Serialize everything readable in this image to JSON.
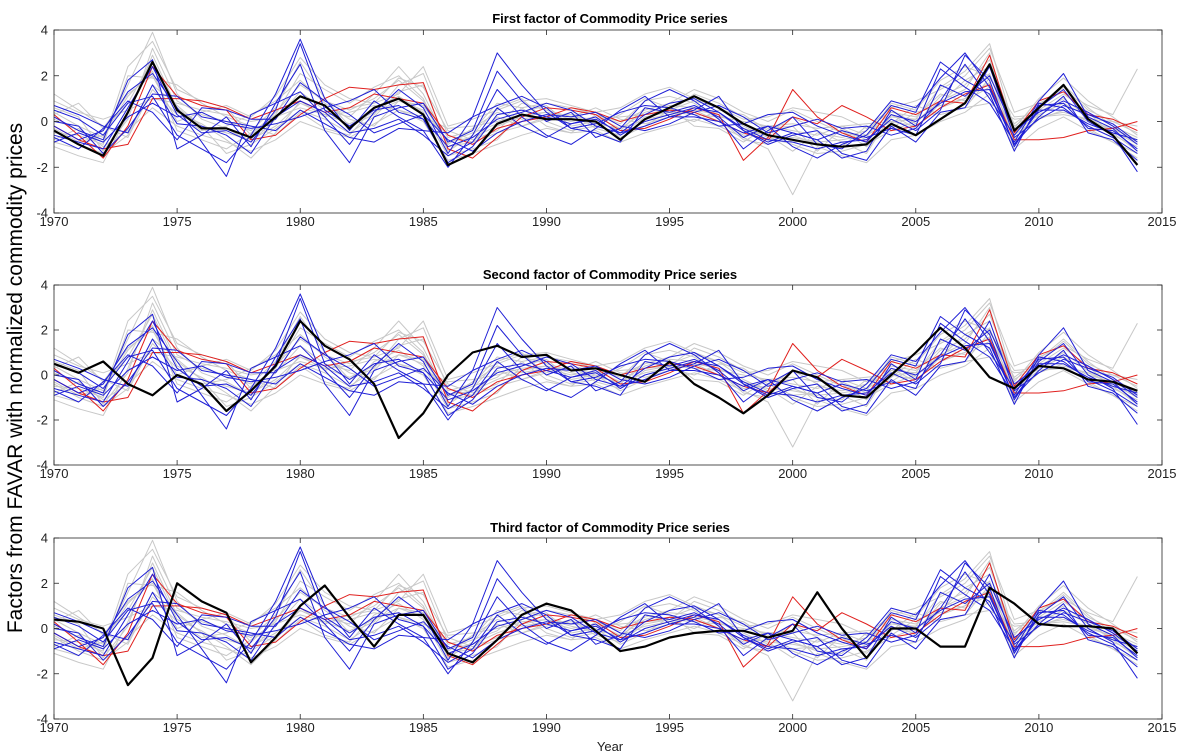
{
  "figure": {
    "ylabel": "Factors from FAVAR with normalized commodity prices",
    "xlabel": "Year"
  },
  "chart_data": [
    {
      "type": "line",
      "title": "First factor of Commodity Price series",
      "xlim": [
        1970,
        2015
      ],
      "ylim": [
        -4,
        4
      ],
      "xticks": [
        1970,
        1975,
        1980,
        1985,
        1990,
        1995,
        2000,
        2005,
        2010,
        2015
      ],
      "yticks": [
        -4,
        -2,
        0,
        2,
        4
      ],
      "x_start": 1970,
      "x_end": 2014,
      "colors": {
        "factor": "#000000",
        "blue": "#1f1fd6",
        "red": "#e0201e",
        "gray": "#c8c8c8"
      },
      "factor": [
        -0.4,
        -1.0,
        -1.5,
        0.4,
        2.6,
        0.5,
        -0.3,
        -0.3,
        -0.7,
        0.2,
        1.1,
        0.7,
        -0.3,
        0.6,
        1.0,
        0.3,
        -1.9,
        -1.4,
        -0.1,
        0.3,
        0.1,
        0.1,
        0.0,
        -0.8,
        0.1,
        0.6,
        1.1,
        0.6,
        -0.1,
        -0.6,
        -0.8,
        -1.0,
        -1.1,
        -1.0,
        -0.1,
        -0.6,
        0.1,
        0.8,
        2.5,
        -0.4,
        0.6,
        1.6,
        0.1,
        -0.6,
        -1.9
      ]
    },
    {
      "type": "line",
      "title": "Second factor of Commodity Price series",
      "xlim": [
        1970,
        2015
      ],
      "ylim": [
        -4,
        4
      ],
      "xticks": [
        1970,
        1975,
        1980,
        1985,
        1990,
        1995,
        2000,
        2005,
        2010,
        2015
      ],
      "yticks": [
        -4,
        -2,
        0,
        2,
        4
      ],
      "x_start": 1970,
      "x_end": 2014,
      "colors": {
        "factor": "#000000",
        "blue": "#1f1fd6",
        "red": "#e0201e",
        "gray": "#c8c8c8"
      },
      "factor": [
        0.5,
        0.1,
        0.6,
        -0.4,
        -0.9,
        0.0,
        -0.4,
        -1.6,
        -0.7,
        0.4,
        2.4,
        1.3,
        0.7,
        -0.4,
        -2.8,
        -1.7,
        0.0,
        1.0,
        1.3,
        0.8,
        0.9,
        0.2,
        0.3,
        0.0,
        -0.3,
        0.6,
        -0.4,
        -1.0,
        -1.7,
        -0.9,
        0.2,
        -0.1,
        -0.9,
        -1.0,
        0.0,
        1.0,
        2.1,
        1.2,
        -0.1,
        -0.6,
        0.4,
        0.3,
        -0.2,
        -0.3,
        -0.7
      ]
    },
    {
      "type": "line",
      "title": "Third factor of Commodity Price series",
      "xlim": [
        1970,
        2015
      ],
      "ylim": [
        -4,
        4
      ],
      "xticks": [
        1970,
        1975,
        1980,
        1985,
        1990,
        1995,
        2000,
        2005,
        2010,
        2015
      ],
      "yticks": [
        -4,
        -2,
        0,
        2,
        4
      ],
      "x_start": 1970,
      "x_end": 2014,
      "colors": {
        "factor": "#000000",
        "blue": "#1f1fd6",
        "red": "#e0201e",
        "gray": "#c8c8c8"
      },
      "factor": [
        0.4,
        0.3,
        0.0,
        -2.5,
        -1.3,
        2.0,
        1.2,
        0.7,
        -1.5,
        -0.4,
        1.0,
        1.9,
        0.5,
        -0.8,
        0.6,
        0.6,
        -1.1,
        -1.5,
        -0.5,
        0.6,
        1.1,
        0.8,
        -0.1,
        -1.0,
        -0.8,
        -0.4,
        -0.2,
        -0.1,
        -0.1,
        -0.4,
        -0.1,
        1.6,
        0.0,
        -1.3,
        0.0,
        0.0,
        -0.8,
        -0.8,
        1.8,
        1.1,
        0.2,
        0.1,
        0.1,
        0.0,
        -1.1
      ]
    }
  ],
  "commodity_series": {
    "blue": [
      [
        -0.6,
        -0.9,
        -1.2,
        0.6,
        2.4,
        0.3,
        -0.5,
        -0.4,
        -0.9,
        0.5,
        3.4,
        0.5,
        -0.2,
        0.5,
        0.7,
        0.1,
        -1.8,
        -1.1,
        0.3,
        0.5,
        0.2,
        -0.1,
        0.1,
        -0.5,
        0.3,
        0.8,
        1.0,
        0.4,
        -0.3,
        -0.8,
        -0.9,
        -1.2,
        -0.9,
        -0.8,
        0.1,
        -0.4,
        0.5,
        2.9,
        1.8,
        -1.1,
        0.6,
        1.4,
        0.0,
        -0.6,
        -2.2
      ],
      [
        0.2,
        -0.4,
        -0.8,
        1.8,
        2.7,
        -1.2,
        -0.6,
        0.2,
        -1.1,
        0.8,
        1.3,
        0.2,
        -1.0,
        0.4,
        1.4,
        0.6,
        -1.4,
        0.2,
        3.0,
        1.6,
        0.4,
        -0.3,
        -0.5,
        -0.9,
        0.6,
        0.4,
        0.7,
        0.2,
        -0.7,
        -0.2,
        -1.1,
        -1.6,
        -1.0,
        -0.6,
        0.7,
        0.4,
        2.6,
        1.8,
        1.2,
        -1.3,
        0.8,
        0.6,
        -0.2,
        -0.7,
        -1.4
      ],
      [
        0.5,
        0.1,
        -0.6,
        0.8,
        1.1,
        -0.6,
        -1.2,
        -1.8,
        -0.6,
        1.2,
        3.6,
        1.0,
        -0.4,
        0.9,
        0.2,
        -0.4,
        -2.0,
        -0.6,
        1.4,
        0.2,
        -0.6,
        -1.0,
        -0.3,
        0.5,
        1.1,
        0.2,
        0.5,
        1.1,
        -0.4,
        -0.9,
        -0.5,
        -0.8,
        -1.6,
        -1.3,
        0.5,
        -0.2,
        2.3,
        1.5,
        0.8,
        -0.9,
        0.9,
        2.1,
        0.2,
        -0.3,
        -1.3
      ],
      [
        -0.2,
        -0.8,
        -0.4,
        1.3,
        2.1,
        0.6,
        -0.9,
        -2.4,
        0.3,
        0.8,
        2.5,
        -0.4,
        -1.8,
        0.2,
        0.6,
        0.8,
        -0.9,
        -0.4,
        2.2,
        0.9,
        0.0,
        0.4,
        -0.7,
        -0.3,
        0.9,
        1.4,
        0.9,
        0.1,
        -1.2,
        -0.4,
        0.2,
        -1.0,
        -1.2,
        -0.4,
        0.9,
        0.6,
        1.9,
        3.0,
        1.5,
        -1.0,
        0.2,
        1.1,
        -0.5,
        -0.8,
        -1.7
      ],
      [
        0.7,
        0.3,
        -0.2,
        -0.5,
        1.6,
        -0.1,
        -0.2,
        -0.6,
        -1.4,
        0.2,
        0.9,
        0.4,
        -0.5,
        -0.3,
        0.1,
        -0.6,
        -1.5,
        -0.9,
        0.6,
        -0.2,
        -0.7,
        -0.1,
        0.2,
        -0.6,
        0.0,
        0.3,
        0.6,
        0.4,
        -0.4,
        -1.0,
        -0.6,
        -0.4,
        -1.4,
        -1.7,
        -0.2,
        -0.9,
        0.4,
        0.6,
        2.4,
        -0.7,
        0.1,
        0.7,
        0.3,
        -0.1,
        -0.9
      ],
      [
        -0.9,
        -0.5,
        -0.9,
        0.2,
        0.8,
        0.2,
        0.4,
        -0.1,
        -0.3,
        -0.1,
        0.2,
        0.6,
        0.9,
        1.4,
        0.4,
        0.1,
        -1.1,
        -0.7,
        0.1,
        0.4,
        0.8,
        0.5,
        -0.2,
        -0.5,
        -0.2,
        0.2,
        0.2,
        0.0,
        -0.5,
        -0.2,
        -0.5,
        -0.8,
        -0.4,
        -0.7,
        -0.3,
        -0.6,
        1.6,
        1.1,
        2.0,
        -0.4,
        0.4,
        0.9,
        0.4,
        -0.2,
        -1.0
      ],
      [
        0.0,
        -0.2,
        -1.4,
        -0.3,
        1.2,
        1.1,
        0.2,
        0.0,
        -0.2,
        -0.4,
        0.5,
        -0.1,
        -0.7,
        -0.9,
        -0.3,
        -0.4,
        -0.5,
        0.2,
        0.7,
        1.1,
        0.6,
        -0.3,
        -0.1,
        0.4,
        0.7,
        0.6,
        0.3,
        -0.2,
        -0.1,
        0.3,
        0.4,
        -0.2,
        -0.6,
        -0.9,
        0.3,
        0.0,
        0.8,
        1.3,
        1.4,
        -1.0,
        0.5,
        0.5,
        -0.1,
        -0.5,
        -0.8
      ],
      [
        -0.7,
        -1.2,
        -0.3,
        0.9,
        0.4,
        -0.8,
        0.6,
        0.5,
        0.1,
        0.1,
        1.7,
        0.9,
        0.3,
        -0.5,
        -0.1,
        0.3,
        -0.8,
        -1.3,
        -0.5,
        0.0,
        0.3,
        0.2,
        0.4,
        -0.2,
        -0.4,
        -0.1,
        0.4,
        0.7,
        0.2,
        -0.5,
        -0.2,
        0.1,
        -0.3,
        -0.2,
        -0.6,
        -0.3,
        0.9,
        2.5,
        1.0,
        -0.6,
        0.7,
        0.8,
        -0.3,
        -0.4,
        -1.2
      ]
    ],
    "red": [
      [
        0.3,
        -0.6,
        -1.6,
        -0.2,
        2.4,
        1.1,
        0.7,
        0.5,
        -0.8,
        -0.6,
        0.3,
        1.0,
        1.5,
        1.4,
        1.6,
        1.7,
        -1.2,
        -1.6,
        -0.7,
        0.2,
        0.6,
        0.5,
        0.3,
        -0.4,
        -0.3,
        0.1,
        0.6,
        0.3,
        -1.7,
        -0.7,
        1.4,
        0.2,
        -0.5,
        -0.9,
        0.6,
        0.3,
        0.9,
        0.8,
        2.9,
        -0.5,
        0.9,
        1.3,
        0.3,
        0.1,
        -0.4
      ],
      [
        -0.2,
        -0.8,
        -1.2,
        -1.0,
        1.0,
        1.0,
        0.9,
        0.6,
        0.1,
        0.5,
        0.9,
        0.4,
        0.6,
        1.2,
        1.0,
        0.8,
        -0.6,
        -1.0,
        -0.3,
        0.0,
        0.2,
        0.6,
        0.4,
        0.0,
        0.3,
        0.5,
        0.4,
        0.0,
        -0.5,
        -0.8,
        0.2,
        -0.1,
        0.7,
        0.2,
        -0.4,
        -0.2,
        0.6,
        1.2,
        1.6,
        -0.8,
        -0.8,
        -0.7,
        -0.4,
        -0.3,
        0.0
      ]
    ],
    "gray": [
      [
        0.4,
        -0.2,
        -0.7,
        1.6,
        3.9,
        1.2,
        0.1,
        -0.3,
        -0.9,
        0.1,
        1.3,
        0.5,
        0.2,
        1.2,
        2.4,
        1.2,
        -1.0,
        -0.3,
        0.4,
        0.1,
        0.3,
        0.0,
        0.2,
        -0.3,
        0.4,
        0.7,
        0.6,
        0.4,
        -0.4,
        -0.6,
        -1.3,
        -0.5,
        -0.7,
        -0.4,
        0.5,
        -0.1,
        1.1,
        1.6,
        2.7,
        -0.2,
        0.5,
        1.2,
        0.4,
        -0.6,
        -1.1
      ],
      [
        -0.9,
        -1.2,
        -0.4,
        0.8,
        2.7,
        0.4,
        -0.1,
        -0.8,
        -1.6,
        -0.5,
        0.9,
        0.2,
        0.6,
        0.8,
        1.9,
        1.5,
        -0.4,
        -0.8,
        -0.4,
        0.6,
        0.8,
        0.6,
        0.3,
        -0.1,
        0.9,
        1.1,
        0.8,
        0.1,
        -0.8,
        -1.0,
        -0.6,
        -1.0,
        -1.1,
        -0.2,
        -0.3,
        0.4,
        0.7,
        1.0,
        2.1,
        -0.9,
        0.1,
        0.5,
        0.0,
        -0.3,
        -0.8
      ],
      [
        0.6,
        0.2,
        -1.3,
        0.1,
        3.2,
        0.9,
        0.3,
        0.0,
        -0.4,
        0.6,
        2.6,
        1.0,
        -0.2,
        0.3,
        1.6,
        2.1,
        -0.6,
        -0.9,
        0.2,
        -0.2,
        0.1,
        0.4,
        -0.3,
        -0.6,
        0.2,
        0.4,
        1.2,
        0.8,
        0.2,
        -0.3,
        -0.2,
        -1.3,
        -0.3,
        -0.8,
        0.2,
        0.1,
        1.5,
        2.2,
        3.4,
        -0.3,
        1.0,
        1.9,
        0.9,
        0.2,
        -0.6
      ],
      [
        -0.5,
        -0.6,
        -1.0,
        2.0,
        1.9,
        1.6,
        0.8,
        0.2,
        -0.2,
        -0.6,
        0.4,
        -0.3,
        -0.6,
        0.6,
        1.1,
        0.4,
        -1.5,
        -1.2,
        -0.8,
        0.4,
        0.7,
        -0.2,
        0.0,
        -0.4,
        0.6,
        0.3,
        0.0,
        0.5,
        0.3,
        -0.4,
        -0.9,
        -0.8,
        -0.4,
        -1.1,
        -0.1,
        0.7,
        0.3,
        0.6,
        1.9,
        0.2,
        0.3,
        0.8,
        -0.3,
        -0.9,
        -1.4
      ],
      [
        1.2,
        0.5,
        -0.2,
        -0.7,
        1.4,
        0.3,
        -0.4,
        -0.2,
        0.3,
        0.9,
        1.8,
        0.8,
        0.1,
        -0.2,
        0.9,
        0.7,
        -0.9,
        -0.5,
        -0.1,
        0.8,
        0.5,
        0.2,
        0.6,
        0.1,
        -0.1,
        0.2,
        0.5,
        0.0,
        -0.6,
        -0.5,
        0.2,
        -0.4,
        -0.9,
        -1.4,
        0.3,
        -0.3,
        0.8,
        1.8,
        2.4,
        -0.5,
        0.6,
        1.5,
        0.5,
        0.0,
        -0.5
      ],
      [
        -0.3,
        -0.9,
        -0.6,
        1.1,
        2.2,
        -0.4,
        -0.8,
        -1.2,
        -0.5,
        0.3,
        2.1,
        1.4,
        0.8,
        1.5,
        2.0,
        1.0,
        -1.3,
        -0.6,
        0.6,
        1.0,
        0.0,
        -0.4,
        -0.2,
        0.3,
        1.0,
        0.6,
        -0.2,
        -0.3,
        -0.9,
        -0.2,
        -0.4,
        -0.6,
        -0.2,
        -0.6,
        0.4,
        0.2,
        1.2,
        0.9,
        1.5,
        -0.6,
        0.2,
        0.4,
        0.1,
        -0.4,
        -1.0
      ],
      [
        0.9,
        0.4,
        0.1,
        0.5,
        1.0,
        0.8,
        0.5,
        0.3,
        0.0,
        0.2,
        0.6,
        0.3,
        0.4,
        0.7,
        0.5,
        0.2,
        -0.3,
        -0.2,
        0.0,
        0.3,
        0.4,
        0.2,
        0.1,
        0.2,
        0.3,
        0.4,
        0.3,
        0.2,
        0.0,
        -0.2,
        -0.1,
        -0.3,
        -0.2,
        -0.1,
        0.0,
        0.1,
        0.4,
        0.6,
        0.8,
        0.1,
        0.2,
        0.3,
        0.1,
        0.0,
        -0.2
      ],
      [
        -1.1,
        -1.5,
        -1.8,
        0.3,
        2.9,
        0.6,
        -0.2,
        -1.4,
        -1.0,
        -0.3,
        0.5,
        0.1,
        -0.5,
        0.2,
        1.3,
        1.6,
        -1.1,
        -0.9,
        -0.5,
        -0.2,
        0.2,
        0.3,
        0.0,
        -0.7,
        -0.2,
        0.5,
        0.9,
        0.6,
        -0.2,
        -0.7,
        -1.0,
        -1.4,
        -1.3,
        -1.0,
        -0.4,
        0.0,
        0.9,
        1.4,
        3.0,
        -0.8,
        0.4,
        1.0,
        0.2,
        -0.5,
        -1.3
      ],
      [
        0.1,
        -0.4,
        -0.9,
        2.4,
        3.5,
        1.4,
        0.9,
        0.6,
        -0.6,
        0.4,
        1.6,
        0.9,
        0.5,
        1.0,
        1.8,
        0.9,
        -0.7,
        -0.4,
        0.8,
        0.6,
        -0.2,
        -0.5,
        0.3,
        0.0,
        0.5,
        0.8,
        1.4,
        1.0,
        0.4,
        0.0,
        0.5,
        0.0,
        -0.5,
        -0.7,
        0.8,
        0.5,
        1.8,
        2.4,
        2.0,
        -0.1,
        0.7,
        1.6,
        0.6,
        -0.2,
        -0.7
      ],
      [
        -0.8,
        -0.3,
        -1.1,
        -0.4,
        0.6,
        -0.2,
        -0.6,
        -0.9,
        -1.3,
        -0.8,
        0.0,
        -0.4,
        -0.7,
        -0.1,
        0.5,
        0.0,
        -1.7,
        -1.4,
        -1.0,
        -0.6,
        -0.3,
        -0.5,
        -0.4,
        -0.9,
        -0.5,
        -0.2,
        0.1,
        -0.2,
        -0.7,
        -1.2,
        -3.2,
        -1.1,
        -1.5,
        -1.8,
        -0.8,
        -0.6,
        0.0,
        0.4,
        1.2,
        -1.2,
        -0.3,
        0.2,
        -0.4,
        -0.9,
        -1.6
      ],
      [
        0.3,
        0.8,
        -0.3,
        1.2,
        2.0,
        0.0,
        0.4,
        0.7,
        0.2,
        1.1,
        2.8,
        1.6,
        1.0,
        0.8,
        1.2,
        2.4,
        -0.2,
        0.1,
        0.5,
        0.9,
        1.0,
        0.7,
        0.4,
        0.6,
        1.2,
        1.5,
        1.0,
        0.6,
        0.1,
        0.2,
        0.6,
        0.4,
        0.2,
        -0.3,
        0.6,
        0.9,
        1.4,
        2.0,
        3.2,
        0.4,
        0.8,
        1.3,
        0.7,
        0.3,
        2.3
      ],
      [
        -0.4,
        -1.0,
        -1.4,
        -0.6,
        1.6,
        0.7,
        -0.2,
        -0.5,
        -0.8,
        -0.2,
        0.8,
        0.3,
        -0.1,
        0.4,
        0.9,
        0.5,
        -0.9,
        -0.7,
        -0.2,
        0.2,
        0.4,
        0.1,
        -0.1,
        -0.3,
        0.1,
        0.3,
        0.5,
        0.3,
        -0.3,
        -0.6,
        -0.7,
        -0.9,
        -0.8,
        -0.6,
        0.0,
        -0.2,
        0.6,
        1.0,
        1.7,
        -0.5,
        0.3,
        0.8,
        0.2,
        -0.3,
        -0.9
      ]
    ]
  }
}
